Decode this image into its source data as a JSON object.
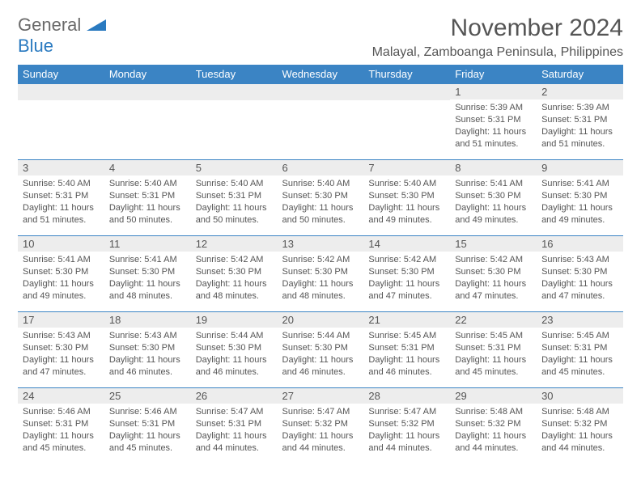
{
  "brand": {
    "text1": "General",
    "text2": "Blue",
    "triangle_color": "#2a7ac0"
  },
  "header": {
    "month_title": "November 2024",
    "location": "Malayal, Zamboanga Peninsula, Philippines"
  },
  "colors": {
    "header_bg": "#3b84c4",
    "header_text": "#ffffff",
    "daynum_bg": "#ededed",
    "text": "#555555",
    "row_border": "#3b84c4"
  },
  "typography": {
    "month_title_fontsize": 30,
    "location_fontsize": 16,
    "weekday_fontsize": 13,
    "daynum_fontsize": 13,
    "body_fontsize": 11
  },
  "weekdays": [
    "Sunday",
    "Monday",
    "Tuesday",
    "Wednesday",
    "Thursday",
    "Friday",
    "Saturday"
  ],
  "weeks": [
    [
      {
        "blank": true
      },
      {
        "blank": true
      },
      {
        "blank": true
      },
      {
        "blank": true
      },
      {
        "blank": true
      },
      {
        "num": "1",
        "sunrise": "Sunrise: 5:39 AM",
        "sunset": "Sunset: 5:31 PM",
        "day1": "Daylight: 11 hours",
        "day2": "and 51 minutes."
      },
      {
        "num": "2",
        "sunrise": "Sunrise: 5:39 AM",
        "sunset": "Sunset: 5:31 PM",
        "day1": "Daylight: 11 hours",
        "day2": "and 51 minutes."
      }
    ],
    [
      {
        "num": "3",
        "sunrise": "Sunrise: 5:40 AM",
        "sunset": "Sunset: 5:31 PM",
        "day1": "Daylight: 11 hours",
        "day2": "and 51 minutes."
      },
      {
        "num": "4",
        "sunrise": "Sunrise: 5:40 AM",
        "sunset": "Sunset: 5:31 PM",
        "day1": "Daylight: 11 hours",
        "day2": "and 50 minutes."
      },
      {
        "num": "5",
        "sunrise": "Sunrise: 5:40 AM",
        "sunset": "Sunset: 5:31 PM",
        "day1": "Daylight: 11 hours",
        "day2": "and 50 minutes."
      },
      {
        "num": "6",
        "sunrise": "Sunrise: 5:40 AM",
        "sunset": "Sunset: 5:30 PM",
        "day1": "Daylight: 11 hours",
        "day2": "and 50 minutes."
      },
      {
        "num": "7",
        "sunrise": "Sunrise: 5:40 AM",
        "sunset": "Sunset: 5:30 PM",
        "day1": "Daylight: 11 hours",
        "day2": "and 49 minutes."
      },
      {
        "num": "8",
        "sunrise": "Sunrise: 5:41 AM",
        "sunset": "Sunset: 5:30 PM",
        "day1": "Daylight: 11 hours",
        "day2": "and 49 minutes."
      },
      {
        "num": "9",
        "sunrise": "Sunrise: 5:41 AM",
        "sunset": "Sunset: 5:30 PM",
        "day1": "Daylight: 11 hours",
        "day2": "and 49 minutes."
      }
    ],
    [
      {
        "num": "10",
        "sunrise": "Sunrise: 5:41 AM",
        "sunset": "Sunset: 5:30 PM",
        "day1": "Daylight: 11 hours",
        "day2": "and 49 minutes."
      },
      {
        "num": "11",
        "sunrise": "Sunrise: 5:41 AM",
        "sunset": "Sunset: 5:30 PM",
        "day1": "Daylight: 11 hours",
        "day2": "and 48 minutes."
      },
      {
        "num": "12",
        "sunrise": "Sunrise: 5:42 AM",
        "sunset": "Sunset: 5:30 PM",
        "day1": "Daylight: 11 hours",
        "day2": "and 48 minutes."
      },
      {
        "num": "13",
        "sunrise": "Sunrise: 5:42 AM",
        "sunset": "Sunset: 5:30 PM",
        "day1": "Daylight: 11 hours",
        "day2": "and 48 minutes."
      },
      {
        "num": "14",
        "sunrise": "Sunrise: 5:42 AM",
        "sunset": "Sunset: 5:30 PM",
        "day1": "Daylight: 11 hours",
        "day2": "and 47 minutes."
      },
      {
        "num": "15",
        "sunrise": "Sunrise: 5:42 AM",
        "sunset": "Sunset: 5:30 PM",
        "day1": "Daylight: 11 hours",
        "day2": "and 47 minutes."
      },
      {
        "num": "16",
        "sunrise": "Sunrise: 5:43 AM",
        "sunset": "Sunset: 5:30 PM",
        "day1": "Daylight: 11 hours",
        "day2": "and 47 minutes."
      }
    ],
    [
      {
        "num": "17",
        "sunrise": "Sunrise: 5:43 AM",
        "sunset": "Sunset: 5:30 PM",
        "day1": "Daylight: 11 hours",
        "day2": "and 47 minutes."
      },
      {
        "num": "18",
        "sunrise": "Sunrise: 5:43 AM",
        "sunset": "Sunset: 5:30 PM",
        "day1": "Daylight: 11 hours",
        "day2": "and 46 minutes."
      },
      {
        "num": "19",
        "sunrise": "Sunrise: 5:44 AM",
        "sunset": "Sunset: 5:30 PM",
        "day1": "Daylight: 11 hours",
        "day2": "and 46 minutes."
      },
      {
        "num": "20",
        "sunrise": "Sunrise: 5:44 AM",
        "sunset": "Sunset: 5:30 PM",
        "day1": "Daylight: 11 hours",
        "day2": "and 46 minutes."
      },
      {
        "num": "21",
        "sunrise": "Sunrise: 5:45 AM",
        "sunset": "Sunset: 5:31 PM",
        "day1": "Daylight: 11 hours",
        "day2": "and 46 minutes."
      },
      {
        "num": "22",
        "sunrise": "Sunrise: 5:45 AM",
        "sunset": "Sunset: 5:31 PM",
        "day1": "Daylight: 11 hours",
        "day2": "and 45 minutes."
      },
      {
        "num": "23",
        "sunrise": "Sunrise: 5:45 AM",
        "sunset": "Sunset: 5:31 PM",
        "day1": "Daylight: 11 hours",
        "day2": "and 45 minutes."
      }
    ],
    [
      {
        "num": "24",
        "sunrise": "Sunrise: 5:46 AM",
        "sunset": "Sunset: 5:31 PM",
        "day1": "Daylight: 11 hours",
        "day2": "and 45 minutes."
      },
      {
        "num": "25",
        "sunrise": "Sunrise: 5:46 AM",
        "sunset": "Sunset: 5:31 PM",
        "day1": "Daylight: 11 hours",
        "day2": "and 45 minutes."
      },
      {
        "num": "26",
        "sunrise": "Sunrise: 5:47 AM",
        "sunset": "Sunset: 5:31 PM",
        "day1": "Daylight: 11 hours",
        "day2": "and 44 minutes."
      },
      {
        "num": "27",
        "sunrise": "Sunrise: 5:47 AM",
        "sunset": "Sunset: 5:32 PM",
        "day1": "Daylight: 11 hours",
        "day2": "and 44 minutes."
      },
      {
        "num": "28",
        "sunrise": "Sunrise: 5:47 AM",
        "sunset": "Sunset: 5:32 PM",
        "day1": "Daylight: 11 hours",
        "day2": "and 44 minutes."
      },
      {
        "num": "29",
        "sunrise": "Sunrise: 5:48 AM",
        "sunset": "Sunset: 5:32 PM",
        "day1": "Daylight: 11 hours",
        "day2": "and 44 minutes."
      },
      {
        "num": "30",
        "sunrise": "Sunrise: 5:48 AM",
        "sunset": "Sunset: 5:32 PM",
        "day1": "Daylight: 11 hours",
        "day2": "and 44 minutes."
      }
    ]
  ]
}
